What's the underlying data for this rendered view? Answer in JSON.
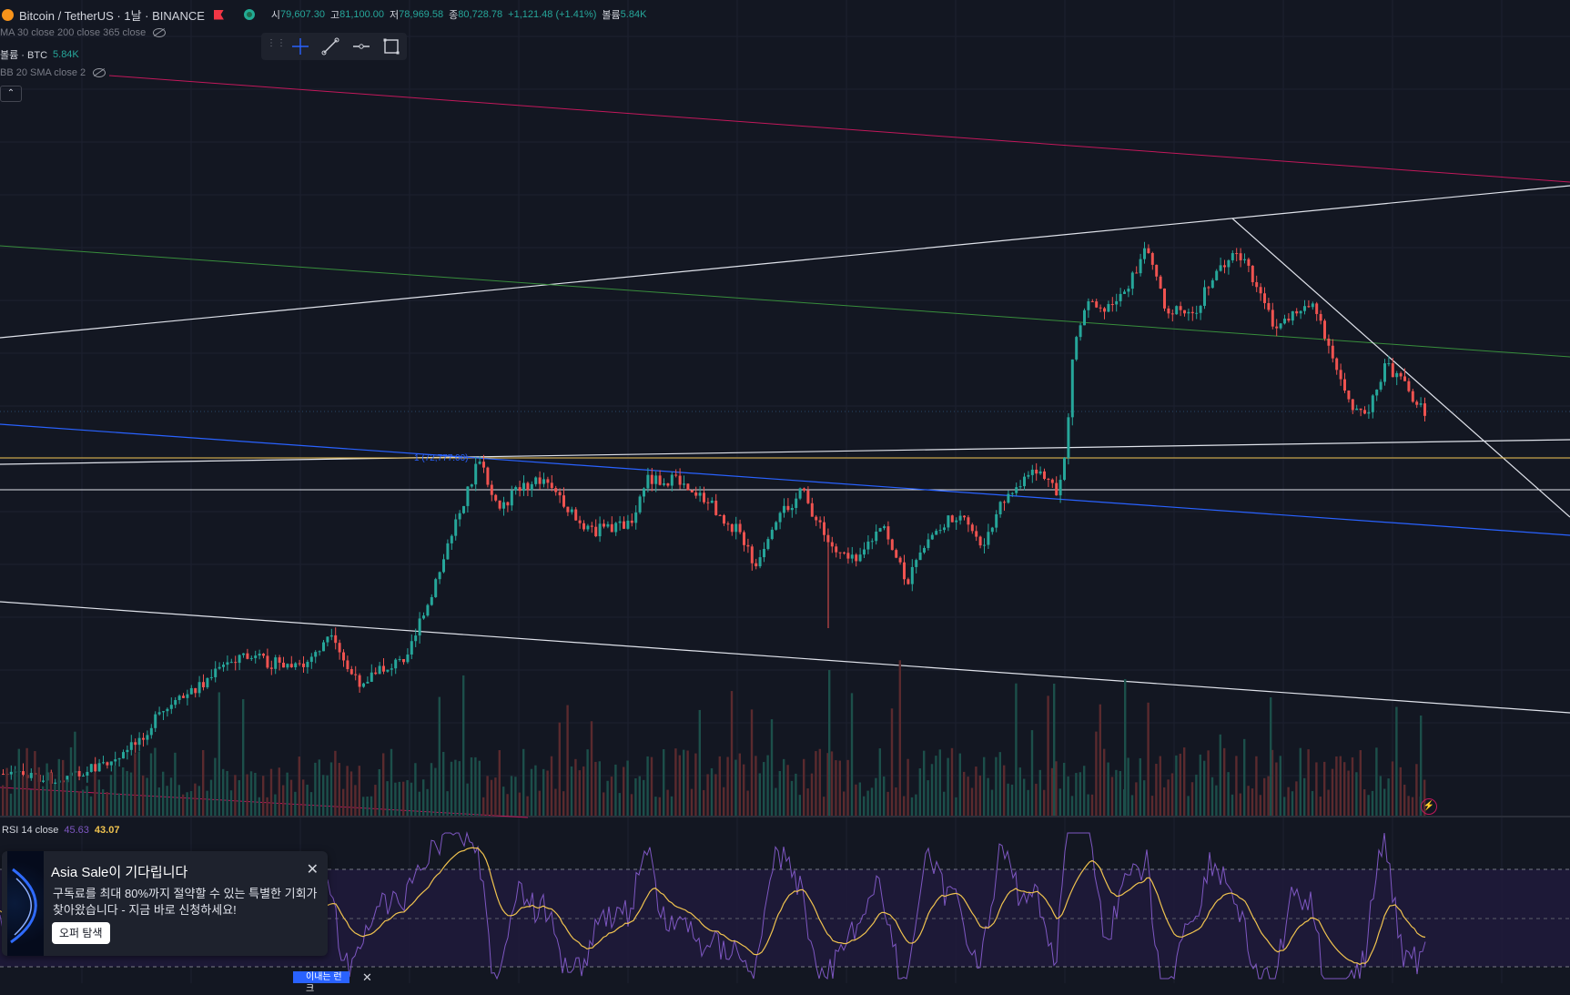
{
  "legend": {
    "symbol": "Bitcoin / TetherUS · 1날 · BINANCE",
    "open_label": "시",
    "open": "79,607.30",
    "high_label": "고",
    "high": "81,100.00",
    "low_label": "저",
    "low": "78,969.58",
    "close_label": "종",
    "close": "80,728.78",
    "change": "+1,121.48 (+1.41%)",
    "volume_label": "볼륨",
    "volume": "5.84K"
  },
  "indicators": {
    "ma": "MA 30 close 200 close 365 close",
    "volume_label": "볼륨 · BTC",
    "volume_value": "5.84K",
    "bb": "BB 20 SMA close 2"
  },
  "collapse_symbol": "⌃",
  "toolbar": {
    "grip": "⋮⋮",
    "tools": [
      "crosshair-tool",
      "trend-line-tool",
      "horizontal-ray-tool",
      "rectangle-tool"
    ]
  },
  "fib_label": "1 (72,777.00)",
  "rsi": {
    "label": "RSI 14 close",
    "value": "45.63",
    "ma_value": "43.07"
  },
  "promo": {
    "title": "Asia Sale이 기다립니다",
    "body": "구독료를 최대 80%까지 절약할 수 있는 특별한 기회가 찾아왔습니다 - 지금 바로 신청하세요!",
    "button": "오퍼 탐색",
    "close": "✕"
  },
  "bottom_ad": {
    "text": "이내는 런크",
    "close": "✕"
  },
  "flash_symbol": "⚡",
  "colors": {
    "background": "#131722",
    "up": "#26a69a",
    "down": "#ef5350",
    "rsi_line": "#7e57c2",
    "rsi_ma": "#f0c34f"
  }
}
